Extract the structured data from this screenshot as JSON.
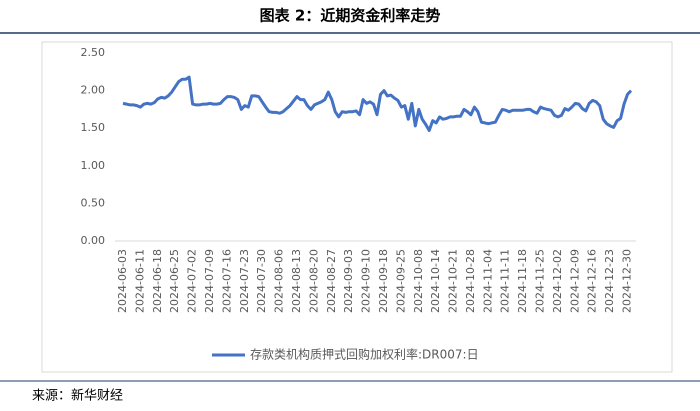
{
  "chart_data": {
    "type": "line",
    "title": "图表 2：近期资金利率走势",
    "source": "来源：新华财经",
    "categories": [
      "2024-06-03",
      null,
      null,
      null,
      null,
      "2024-06-11",
      null,
      null,
      null,
      null,
      "2024-06-18",
      null,
      null,
      null,
      null,
      "2024-06-25",
      null,
      null,
      null,
      null,
      "2024-07-02",
      null,
      null,
      null,
      null,
      "2024-07-09",
      null,
      null,
      null,
      null,
      "2024-07-16",
      null,
      null,
      null,
      null,
      "2024-07-23",
      null,
      null,
      null,
      null,
      "2024-07-30",
      null,
      null,
      null,
      null,
      "2024-08-06",
      null,
      null,
      null,
      null,
      "2024-08-13",
      null,
      null,
      null,
      null,
      "2024-08-20",
      null,
      null,
      null,
      null,
      "2024-08-27",
      null,
      null,
      null,
      null,
      "2024-09-03",
      null,
      null,
      null,
      null,
      "2024-09-10",
      null,
      null,
      null,
      null,
      "2024-09-18",
      null,
      null,
      null,
      null,
      "2024-09-25",
      null,
      null,
      null,
      null,
      "2024-10-08",
      null,
      null,
      null,
      null,
      "2024-10-14",
      null,
      null,
      null,
      null,
      "2024-10-21",
      null,
      null,
      null,
      null,
      "2024-10-28",
      null,
      null,
      null,
      null,
      "2024-11-04",
      null,
      null,
      null,
      null,
      "2024-11-11",
      null,
      null,
      null,
      null,
      "2024-11-18",
      null,
      null,
      null,
      null,
      "2024-11-25",
      null,
      null,
      null,
      null,
      "2024-12-02",
      null,
      null,
      null,
      null,
      "2024-12-09",
      null,
      null,
      null,
      null,
      "2024-12-16",
      null,
      null,
      null,
      null,
      "2024-12-23",
      null,
      null,
      null,
      null,
      "2024-12-30",
      null
    ],
    "series": [
      {
        "name": "存款类机构质押式回购加权利率:DR007:日",
        "color": "#4472c4",
        "values": [
          1.83,
          1.82,
          1.81,
          1.81,
          1.8,
          1.78,
          1.82,
          1.83,
          1.82,
          1.84,
          1.89,
          1.91,
          1.9,
          1.93,
          1.98,
          2.05,
          2.12,
          2.15,
          2.15,
          2.18,
          1.82,
          1.81,
          1.81,
          1.82,
          1.82,
          1.83,
          1.82,
          1.82,
          1.83,
          1.88,
          1.92,
          1.92,
          1.91,
          1.88,
          1.75,
          1.8,
          1.78,
          1.93,
          1.93,
          1.92,
          1.85,
          1.78,
          1.72,
          1.71,
          1.71,
          1.7,
          1.72,
          1.76,
          1.8,
          1.86,
          1.92,
          1.88,
          1.88,
          1.8,
          1.75,
          1.81,
          1.83,
          1.85,
          1.88,
          1.98,
          1.88,
          1.72,
          1.65,
          1.72,
          1.71,
          1.72,
          1.72,
          1.73,
          1.68,
          1.88,
          1.83,
          1.85,
          1.82,
          1.68,
          1.95,
          2.0,
          1.93,
          1.94,
          1.9,
          1.87,
          1.78,
          1.8,
          1.62,
          1.83,
          1.53,
          1.75,
          1.62,
          1.55,
          1.47,
          1.6,
          1.57,
          1.65,
          1.62,
          1.63,
          1.65,
          1.65,
          1.66,
          1.66,
          1.75,
          1.72,
          1.68,
          1.78,
          1.72,
          1.58,
          1.57,
          1.56,
          1.57,
          1.58,
          1.67,
          1.75,
          1.74,
          1.72,
          1.74,
          1.74,
          1.74,
          1.74,
          1.75,
          1.75,
          1.72,
          1.7,
          1.78,
          1.76,
          1.75,
          1.74,
          1.67,
          1.65,
          1.67,
          1.76,
          1.74,
          1.78,
          1.83,
          1.82,
          1.76,
          1.73,
          1.83,
          1.87,
          1.85,
          1.8,
          1.62,
          1.56,
          1.53,
          1.51,
          1.6,
          1.63,
          1.82,
          1.95,
          2.0
        ]
      }
    ],
    "ylim": [
      0,
      2.5
    ],
    "yticks": [
      {
        "value": 0,
        "label": "0.00"
      },
      {
        "value": 0.5,
        "label": "0.50"
      },
      {
        "value": 1,
        "label": "1.00"
      },
      {
        "value": 1.5,
        "label": "1.50"
      },
      {
        "value": 2,
        "label": "2.00"
      },
      {
        "value": 2.5,
        "label": "2.50"
      }
    ],
    "grid": false,
    "legend": "bottom"
  }
}
